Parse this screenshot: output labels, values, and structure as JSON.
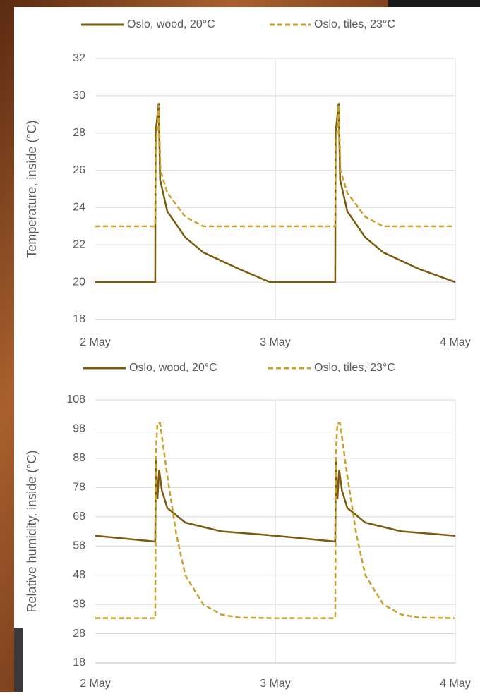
{
  "chart_data": [
    {
      "type": "line",
      "ylabel": "Temperature, inside (°C)",
      "xlim": [
        0,
        2
      ],
      "xticks": [
        {
          "value": 0,
          "label": "2 May"
        },
        {
          "value": 1,
          "label": "3 May"
        },
        {
          "value": 2,
          "label": "4 May"
        }
      ],
      "ylim": [
        18,
        32
      ],
      "yticks": [
        18,
        20,
        22,
        24,
        26,
        28,
        30,
        32
      ],
      "grid": true,
      "series": [
        {
          "name": "Oslo, wood, 20°C",
          "color": "#7a5a0c",
          "dash": false,
          "x": [
            0,
            0.333,
            0.335,
            0.352,
            0.36,
            0.4,
            0.5,
            0.6,
            0.8,
            0.97,
            1.333,
            1.335,
            1.352,
            1.36,
            1.4,
            1.5,
            1.6,
            1.8,
            2.0
          ],
          "values": [
            20,
            20,
            28,
            29.6,
            25.5,
            23.8,
            22.4,
            21.6,
            20.7,
            20,
            20,
            28,
            29.6,
            25.5,
            23.8,
            22.4,
            21.6,
            20.7,
            20
          ]
        },
        {
          "name": "Oslo, tiles, 23°C",
          "color": "#c9a12a",
          "dash": true,
          "x": [
            0,
            0.333,
            0.336,
            0.352,
            0.362,
            0.4,
            0.5,
            0.6,
            1.333,
            1.336,
            1.352,
            1.362,
            1.4,
            1.5,
            1.6,
            2.0
          ],
          "values": [
            23,
            23,
            27,
            29.5,
            26,
            24.8,
            23.5,
            23,
            23,
            27,
            29.5,
            26,
            24.8,
            23.5,
            23,
            23
          ]
        }
      ]
    },
    {
      "type": "line",
      "ylabel": "Relative humidity, inside (°C)",
      "xlim": [
        0,
        2
      ],
      "xticks": [
        {
          "value": 0,
          "label": "2 May"
        },
        {
          "value": 1,
          "label": "3 May"
        },
        {
          "value": 2,
          "label": "4 May"
        }
      ],
      "ylim": [
        18,
        108
      ],
      "yticks": [
        18,
        28,
        38,
        48,
        58,
        68,
        78,
        88,
        98,
        108
      ],
      "grid": true,
      "series": [
        {
          "name": "Oslo, wood, 20°C",
          "color": "#7a5a0c",
          "dash": false,
          "x": [
            0,
            0.333,
            0.337,
            0.345,
            0.355,
            0.37,
            0.4,
            0.5,
            0.7,
            1.0,
            1.333,
            1.337,
            1.345,
            1.355,
            1.37,
            1.4,
            1.5,
            1.7,
            2.0
          ],
          "values": [
            61.5,
            59.5,
            88,
            74,
            84,
            77,
            71,
            66,
            63,
            61.5,
            59.5,
            88,
            74,
            84,
            77,
            71,
            66,
            63,
            61.5
          ]
        },
        {
          "name": "Oslo, tiles, 23°C",
          "color": "#c9a12a",
          "dash": true,
          "x": [
            0,
            0.333,
            0.337,
            0.345,
            0.36,
            0.4,
            0.45,
            0.5,
            0.6,
            0.7,
            0.8,
            1.0,
            1.333,
            1.337,
            1.345,
            1.36,
            1.4,
            1.45,
            1.5,
            1.6,
            1.7,
            1.8,
            2.0
          ],
          "values": [
            33.3,
            33.3,
            90,
            100,
            100,
            82,
            62,
            48,
            38,
            34.5,
            33.5,
            33.3,
            33.3,
            90,
            100,
            100,
            82,
            62,
            48,
            38,
            34.5,
            33.5,
            33.3
          ]
        }
      ]
    }
  ]
}
